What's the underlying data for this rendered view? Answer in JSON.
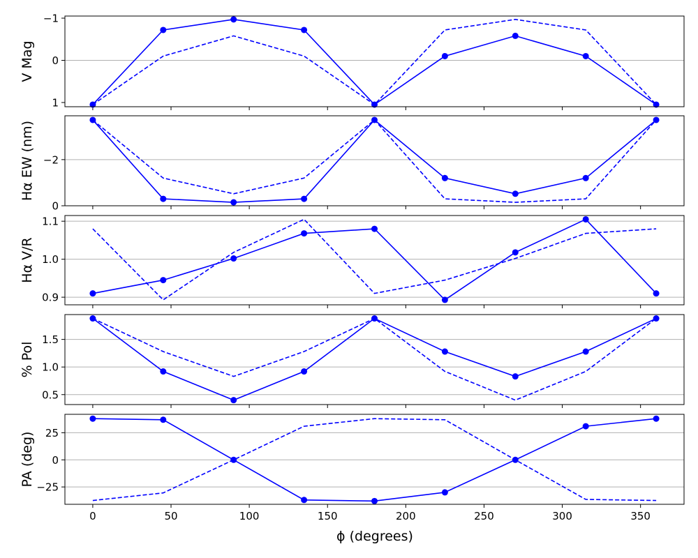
{
  "chart_data": {
    "type": "line",
    "x_label": "ϕ (degrees)",
    "x_ticks": [
      "0",
      "50",
      "100",
      "150",
      "200",
      "250",
      "300",
      "350"
    ],
    "x_tick_values": [
      0,
      50,
      100,
      150,
      200,
      250,
      300,
      350
    ],
    "xlim": [
      -17.8,
      377.8
    ],
    "x": [
      0,
      45,
      90,
      135,
      180,
      225,
      270,
      315,
      360
    ],
    "series_color": "#0000ff",
    "panels": [
      {
        "ylabel": "V Mag",
        "ylim": [
          1.1,
          -1.05
        ],
        "y_ticks": [
          "−1",
          "0",
          "1"
        ],
        "y_tick_values": [
          -1,
          0,
          1
        ],
        "grid_values": [
          0
        ],
        "solid": [
          1.05,
          -0.72,
          -0.97,
          -0.72,
          1.05,
          -0.1,
          -0.58,
          -0.1,
          1.05
        ],
        "dashed": [
          1.05,
          -0.1,
          -0.58,
          -0.1,
          1.05,
          -0.72,
          -0.97,
          -0.72,
          1.05
        ]
      },
      {
        "ylabel": "Hα EW (nm)",
        "ylim": [
          0,
          -3.9
        ],
        "y_ticks": [
          "0",
          "−2"
        ],
        "y_tick_values": [
          0,
          -2
        ],
        "grid_values": [
          -2
        ],
        "solid": [
          -3.72,
          -0.3,
          -0.15,
          -0.3,
          -3.72,
          -1.2,
          -0.52,
          -1.2,
          -3.72
        ],
        "dashed": [
          -3.72,
          -1.2,
          -0.52,
          -1.2,
          -3.72,
          -0.3,
          -0.15,
          -0.3,
          -3.72
        ]
      },
      {
        "ylabel": "Hα V/R",
        "ylim": [
          0.88,
          1.115
        ],
        "y_ticks": [
          "0.9",
          "1.0",
          "1.1"
        ],
        "y_tick_values": [
          0.9,
          1.0,
          1.1
        ],
        "grid_values": [
          0.9,
          1.0,
          1.1
        ],
        "solid": [
          0.91,
          0.945,
          1.002,
          1.068,
          1.08,
          0.893,
          1.018,
          1.105,
          0.91
        ],
        "dashed": [
          1.08,
          0.893,
          1.018,
          1.105,
          0.91,
          0.945,
          1.002,
          1.068,
          1.08
        ]
      },
      {
        "ylabel": "% Pol",
        "ylim": [
          0.32,
          1.95
        ],
        "y_ticks": [
          "0.5",
          "1.0",
          "1.5"
        ],
        "y_tick_values": [
          0.5,
          1.0,
          1.5
        ],
        "grid_values": [
          0.5,
          1.0,
          1.5
        ],
        "solid": [
          1.88,
          0.92,
          0.4,
          0.92,
          1.88,
          1.28,
          0.83,
          1.28,
          1.88
        ],
        "dashed": [
          1.88,
          1.28,
          0.83,
          1.28,
          1.88,
          0.92,
          0.4,
          0.92,
          1.88
        ]
      },
      {
        "ylabel": "PA (deg)",
        "ylim": [
          -41,
          42
        ],
        "y_ticks": [
          "−25",
          "0",
          "25"
        ],
        "y_tick_values": [
          -25,
          0,
          25
        ],
        "grid_values": [
          -25,
          0,
          25
        ],
        "solid": [
          38,
          37,
          0,
          -37,
          -38,
          -30,
          0,
          31,
          38
        ],
        "dashed": [
          -37.5,
          -30.5,
          0,
          31,
          38,
          37,
          0,
          -36.5,
          -37.5
        ]
      }
    ]
  }
}
